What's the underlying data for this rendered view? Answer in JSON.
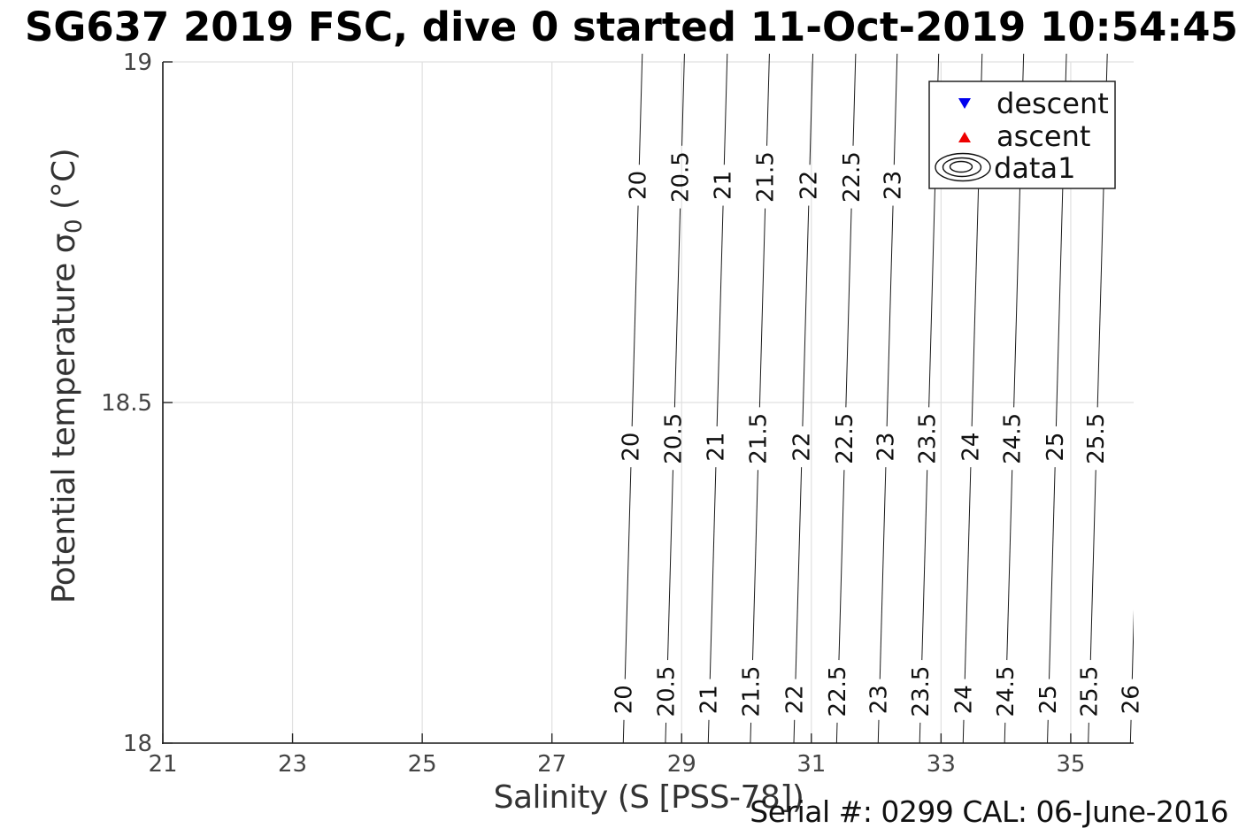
{
  "title": "SG637 2019 FSC, dive 0 started 11-Oct-2019 10:54:45",
  "footer": {
    "serial_note": "Serial #: 0299 CAL: 06-June-2016"
  },
  "axes": {
    "xlabel": "Salinity (S [PSS-78])",
    "ylabel_main": "Potential temperature σ",
    "ylabel_sub": "0",
    "ylabel_unit": " (°C)",
    "x_ticks": [
      21,
      23,
      25,
      27,
      29,
      31,
      33,
      35
    ],
    "y_ticks": [
      18,
      18.5,
      19
    ],
    "xlim": [
      21,
      36
    ],
    "ylim": [
      18,
      19
    ],
    "grid": true,
    "grid_color": "#e0e0e0",
    "spine_color": "#1a1a1a",
    "tick_label_color": "#444444"
  },
  "legend": {
    "position": "top-right",
    "border_color": "#222222",
    "items": [
      {
        "label": "descent",
        "marker": "triangle-down-icon",
        "color": "#0000EE"
      },
      {
        "label": "ascent",
        "marker": "triangle-up-icon",
        "color": "#EE0000"
      },
      {
        "label": "data1",
        "marker": "contour-rings-icon",
        "color": "#111111"
      }
    ]
  },
  "chart_data": {
    "type": "contour",
    "title": "SG637 2019 FSC, dive 0 started 11-Oct-2019 10:54:45",
    "xlabel": "Salinity (S [PSS-78])",
    "ylabel": "Potential temperature σ0 (°C)",
    "xlim": [
      21,
      36
    ],
    "ylim": [
      18,
      19
    ],
    "x_ticks": [
      21,
      23,
      25,
      27,
      29,
      31,
      33,
      35
    ],
    "y_ticks": [
      18,
      18.5,
      19
    ],
    "grid": true,
    "legend_entries": [
      "descent",
      "ascent",
      "data1"
    ],
    "contour_variable": "potential density anomaly sigma-0 isopycnals (kg/m^3)",
    "line_color": "#1a1a1a",
    "label_color": "#111111",
    "isopycnal_slope_ds_dt": 0.29,
    "draw_top_temp": 19.012,
    "label_temps": {
      "top": 18.819,
      "mid": 18.435,
      "bottom": 18.064
    },
    "levels": [
      {
        "level": 20,
        "s_at_t18": 28.1,
        "label_rows": [
          "top",
          "mid",
          "bottom"
        ]
      },
      {
        "level": 20.5,
        "s_at_t18": 28.75,
        "label_rows": [
          "top",
          "mid",
          "bottom"
        ]
      },
      {
        "level": 21,
        "s_at_t18": 29.41,
        "label_rows": [
          "top",
          "mid",
          "bottom"
        ]
      },
      {
        "level": 21.5,
        "s_at_t18": 30.06,
        "label_rows": [
          "top",
          "mid",
          "bottom"
        ]
      },
      {
        "level": 22,
        "s_at_t18": 30.73,
        "label_rows": [
          "top",
          "mid",
          "bottom"
        ]
      },
      {
        "level": 22.5,
        "s_at_t18": 31.39,
        "label_rows": [
          "top",
          "mid",
          "bottom"
        ]
      },
      {
        "level": 23,
        "s_at_t18": 32.03,
        "label_rows": [
          "top",
          "mid",
          "bottom"
        ]
      },
      {
        "level": 23.5,
        "s_at_t18": 32.67,
        "label_rows": [
          "mid",
          "bottom"
        ]
      },
      {
        "level": 24,
        "s_at_t18": 33.34,
        "label_rows": [
          "mid",
          "bottom"
        ]
      },
      {
        "level": 24.5,
        "s_at_t18": 33.98,
        "label_rows": [
          "mid",
          "bottom"
        ]
      },
      {
        "level": 25,
        "s_at_t18": 34.64,
        "label_rows": [
          "mid",
          "bottom"
        ]
      },
      {
        "level": 25.5,
        "s_at_t18": 35.27,
        "label_rows": [
          "mid",
          "bottom"
        ]
      },
      {
        "level": 26,
        "s_at_t18": 35.92,
        "label_rows": [
          "bottom"
        ]
      }
    ],
    "series": [
      {
        "name": "descent",
        "marker": "triangle-down",
        "color": "#0000EE",
        "points": []
      },
      {
        "name": "ascent",
        "marker": "triangle-up",
        "color": "#EE0000",
        "points": []
      }
    ]
  }
}
